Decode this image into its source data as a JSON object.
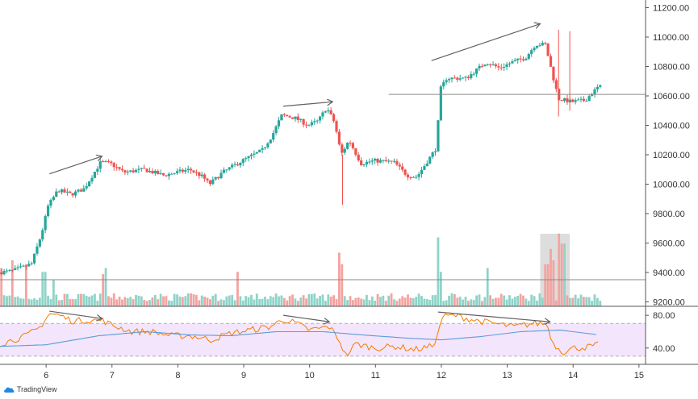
{
  "brand": {
    "name": "TradingView",
    "icon": "cloud-icon"
  },
  "colors": {
    "up": "#26a69a",
    "down": "#ef5350",
    "vol_up": "#8fd3c8",
    "vol_down": "#f4a3a0",
    "rsi": "#f57c00",
    "rsi_ma": "#5b9bd5",
    "rsi_band": "#f3e5fb",
    "arrow": "#616161",
    "grid_line": "#8a8a8a",
    "highlight": "#cfcfcf"
  },
  "chart_data": [
    {
      "type": "candlestick",
      "title": "",
      "x_ticks": [
        "6",
        "7",
        "8",
        "9",
        "10",
        "11",
        "12",
        "13",
        "14",
        "15"
      ],
      "xlim": [
        5.3,
        15.1
      ],
      "y_ticks": [
        "11200.00",
        "11000.00",
        "10800.00",
        "10600.00",
        "10400.00",
        "10200.00",
        "10000.00",
        "9800.00",
        "9600.00",
        "9400.00",
        "9200.00"
      ],
      "ylim": [
        9170,
        11230
      ],
      "reference_line": {
        "y": 10610,
        "x_start": 11.2
      },
      "anchors": [
        {
          "x": 5.3,
          "y": 9400
        },
        {
          "x": 5.5,
          "y": 9410
        },
        {
          "x": 5.7,
          "y": 9440
        },
        {
          "x": 5.8,
          "y": 9460
        },
        {
          "x": 5.95,
          "y": 9660
        },
        {
          "x": 6.05,
          "y": 9850
        },
        {
          "x": 6.2,
          "y": 9960
        },
        {
          "x": 6.4,
          "y": 9930
        },
        {
          "x": 6.6,
          "y": 9970
        },
        {
          "x": 6.85,
          "y": 10150
        },
        {
          "x": 7.0,
          "y": 10140
        },
        {
          "x": 7.2,
          "y": 10080
        },
        {
          "x": 7.5,
          "y": 10100
        },
        {
          "x": 7.8,
          "y": 10060
        },
        {
          "x": 8.0,
          "y": 10080
        },
        {
          "x": 8.2,
          "y": 10100
        },
        {
          "x": 8.4,
          "y": 10050
        },
        {
          "x": 8.5,
          "y": 10000
        },
        {
          "x": 8.7,
          "y": 10080
        },
        {
          "x": 9.0,
          "y": 10160
        },
        {
          "x": 9.3,
          "y": 10230
        },
        {
          "x": 9.45,
          "y": 10330
        },
        {
          "x": 9.6,
          "y": 10470
        },
        {
          "x": 9.8,
          "y": 10450
        },
        {
          "x": 10.0,
          "y": 10400
        },
        {
          "x": 10.15,
          "y": 10430
        },
        {
          "x": 10.28,
          "y": 10520
        },
        {
          "x": 10.4,
          "y": 10420
        },
        {
          "x": 10.5,
          "y": 10200
        },
        {
          "x": 10.62,
          "y": 10300
        },
        {
          "x": 10.8,
          "y": 10140
        },
        {
          "x": 11.0,
          "y": 10160
        },
        {
          "x": 11.3,
          "y": 10150
        },
        {
          "x": 11.5,
          "y": 10060
        },
        {
          "x": 11.65,
          "y": 10050
        },
        {
          "x": 11.8,
          "y": 10150
        },
        {
          "x": 11.95,
          "y": 10250
        },
        {
          "x": 12.0,
          "y": 10640
        },
        {
          "x": 12.1,
          "y": 10720
        },
        {
          "x": 12.4,
          "y": 10720
        },
        {
          "x": 12.7,
          "y": 10830
        },
        {
          "x": 12.9,
          "y": 10790
        },
        {
          "x": 13.1,
          "y": 10830
        },
        {
          "x": 13.3,
          "y": 10860
        },
        {
          "x": 13.45,
          "y": 10950
        },
        {
          "x": 13.6,
          "y": 10950
        },
        {
          "x": 13.7,
          "y": 10760
        },
        {
          "x": 13.8,
          "y": 10580
        },
        {
          "x": 14.0,
          "y": 10560
        },
        {
          "x": 14.2,
          "y": 10570
        },
        {
          "x": 14.4,
          "y": 10660
        }
      ],
      "volume_spikes": [
        {
          "x": 5.3,
          "h": 0.5
        },
        {
          "x": 5.5,
          "h": 0.6
        },
        {
          "x": 5.7,
          "h": 0.55
        },
        {
          "x": 5.97,
          "h": 0.45
        },
        {
          "x": 6.1,
          "h": 0.35
        },
        {
          "x": 6.85,
          "h": 0.42
        },
        {
          "x": 6.9,
          "h": 0.5
        },
        {
          "x": 8.9,
          "h": 0.45
        },
        {
          "x": 10.45,
          "h": 0.7
        },
        {
          "x": 10.5,
          "h": 0.55
        },
        {
          "x": 11.95,
          "h": 0.9
        },
        {
          "x": 12.0,
          "h": 0.45
        },
        {
          "x": 12.7,
          "h": 0.5
        },
        {
          "x": 13.6,
          "h": 0.55
        },
        {
          "x": 13.65,
          "h": 0.75
        },
        {
          "x": 13.7,
          "h": 0.6
        },
        {
          "x": 13.8,
          "h": 0.95
        },
        {
          "x": 13.85,
          "h": 0.82
        }
      ],
      "volume_highlight": {
        "x_start": 13.5,
        "x_end": 13.95
      },
      "divergence_arrows": [
        {
          "from": {
            "x": 6.05,
            "y": 10070
          },
          "to": {
            "x": 6.85,
            "y": 10190
          }
        },
        {
          "from": {
            "x": 9.6,
            "y": 10530
          },
          "to": {
            "x": 10.35,
            "y": 10560
          }
        },
        {
          "from": {
            "x": 11.85,
            "y": 10840
          },
          "to": {
            "x": 13.5,
            "y": 11090
          }
        }
      ]
    },
    {
      "type": "line",
      "title": "",
      "y_ticks": [
        "80.00",
        "40.00"
      ],
      "ylim": [
        25,
        90
      ],
      "band": [
        30,
        70
      ],
      "series_points": [
        {
          "x": 5.3,
          "y": 45
        },
        {
          "x": 5.5,
          "y": 50
        },
        {
          "x": 5.7,
          "y": 55
        },
        {
          "x": 5.9,
          "y": 65
        },
        {
          "x": 6.05,
          "y": 82
        },
        {
          "x": 6.2,
          "y": 80
        },
        {
          "x": 6.4,
          "y": 73
        },
        {
          "x": 6.6,
          "y": 74
        },
        {
          "x": 6.85,
          "y": 74
        },
        {
          "x": 7.0,
          "y": 68
        },
        {
          "x": 7.3,
          "y": 60
        },
        {
          "x": 7.6,
          "y": 60
        },
        {
          "x": 7.9,
          "y": 55
        },
        {
          "x": 8.2,
          "y": 55
        },
        {
          "x": 8.5,
          "y": 50
        },
        {
          "x": 8.8,
          "y": 58
        },
        {
          "x": 9.1,
          "y": 62
        },
        {
          "x": 9.4,
          "y": 66
        },
        {
          "x": 9.6,
          "y": 75
        },
        {
          "x": 9.8,
          "y": 70
        },
        {
          "x": 10.0,
          "y": 62
        },
        {
          "x": 10.3,
          "y": 66
        },
        {
          "x": 10.45,
          "y": 50
        },
        {
          "x": 10.55,
          "y": 30
        },
        {
          "x": 10.7,
          "y": 45
        },
        {
          "x": 11.0,
          "y": 40
        },
        {
          "x": 11.3,
          "y": 42
        },
        {
          "x": 11.6,
          "y": 38
        },
        {
          "x": 11.85,
          "y": 42
        },
        {
          "x": 11.95,
          "y": 55
        },
        {
          "x": 12.0,
          "y": 78
        },
        {
          "x": 12.2,
          "y": 80
        },
        {
          "x": 12.5,
          "y": 74
        },
        {
          "x": 12.8,
          "y": 70
        },
        {
          "x": 13.1,
          "y": 66
        },
        {
          "x": 13.4,
          "y": 70
        },
        {
          "x": 13.6,
          "y": 70
        },
        {
          "x": 13.7,
          "y": 45
        },
        {
          "x": 13.85,
          "y": 35
        },
        {
          "x": 14.0,
          "y": 40
        },
        {
          "x": 14.2,
          "y": 41
        },
        {
          "x": 14.4,
          "y": 44
        }
      ],
      "ma_points": [
        {
          "x": 5.3,
          "y": 42
        },
        {
          "x": 6.0,
          "y": 44
        },
        {
          "x": 6.8,
          "y": 55
        },
        {
          "x": 7.5,
          "y": 60
        },
        {
          "x": 8.2,
          "y": 56
        },
        {
          "x": 8.8,
          "y": 55
        },
        {
          "x": 9.5,
          "y": 60
        },
        {
          "x": 10.2,
          "y": 60
        },
        {
          "x": 10.8,
          "y": 56
        },
        {
          "x": 11.5,
          "y": 52
        },
        {
          "x": 12.0,
          "y": 50
        },
        {
          "x": 12.6,
          "y": 54
        },
        {
          "x": 13.2,
          "y": 60
        },
        {
          "x": 13.8,
          "y": 62
        },
        {
          "x": 14.4,
          "y": 56
        }
      ],
      "divergence_arrows": [
        {
          "from": {
            "x": 6.05,
            "y": 85
          },
          "to": {
            "x": 6.85,
            "y": 76
          }
        },
        {
          "from": {
            "x": 9.6,
            "y": 80
          },
          "to": {
            "x": 10.3,
            "y": 72
          }
        },
        {
          "from": {
            "x": 11.95,
            "y": 84
          },
          "to": {
            "x": 13.65,
            "y": 72
          }
        }
      ]
    }
  ]
}
